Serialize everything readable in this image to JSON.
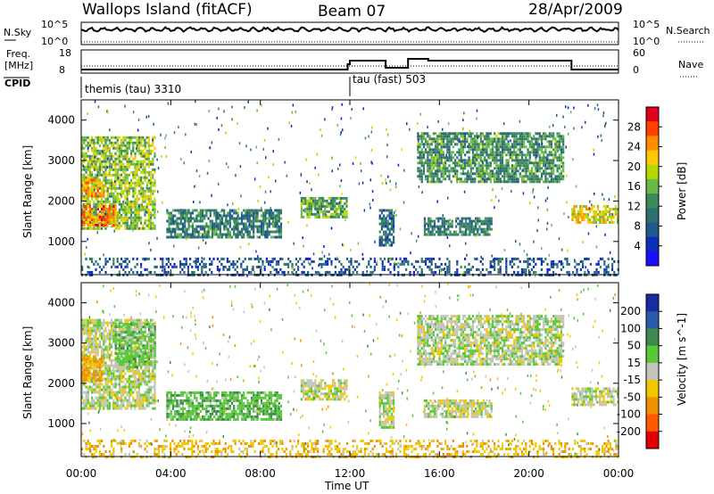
{
  "header": {
    "station": "Wallops Island (fitACF)",
    "beam": "Beam 07",
    "date": "28/Apr/2009"
  },
  "noise_panel": {
    "left_label": "N.Sky",
    "left_ticks": [
      "10^5",
      "10^0"
    ],
    "right_label": "N.Search",
    "right_ticks": [
      "10^5",
      "10^0"
    ]
  },
  "freq_panel": {
    "left_label_line1": "Freq.",
    "left_label_line2": "[MHz]",
    "left_ticks": [
      "18",
      "8"
    ],
    "right_label": "Nave",
    "right_ticks": [
      "60",
      "0"
    ],
    "freq_steps": [
      {
        "t0": 0.0,
        "t1": 11.9,
        "mhz": 10
      },
      {
        "t0": 11.9,
        "t1": 12.0,
        "mhz": 13
      },
      {
        "t0": 12.0,
        "t1": 13.6,
        "mhz": 15
      },
      {
        "t0": 13.6,
        "t1": 14.6,
        "mhz": 11
      },
      {
        "t0": 14.6,
        "t1": 15.5,
        "mhz": 16
      },
      {
        "t0": 15.5,
        "t1": 21.9,
        "mhz": 15
      },
      {
        "t0": 21.9,
        "t1": 24.0,
        "mhz": 10
      }
    ]
  },
  "cpid": {
    "label": "CPID",
    "segments": [
      {
        "start_hour": 0,
        "text": "themis (tau) 3310"
      },
      {
        "start_hour": 12,
        "text": "tau (fast) 503"
      }
    ]
  },
  "axes": {
    "ylabel": "Slant Range [km]",
    "yticks": [
      "1000",
      "2000",
      "3000",
      "4000"
    ],
    "ylim": [
      180,
      4500
    ],
    "xlabel": "Time UT",
    "xticks": [
      "00:00",
      "04:00",
      "08:00",
      "12:00",
      "16:00",
      "20:00",
      "00:00"
    ],
    "xlim_hours": [
      0,
      24
    ]
  },
  "colorbars": {
    "power": {
      "label": "Power [dB]",
      "ticks": [
        "28",
        "24",
        "20",
        "16",
        "12",
        "8",
        "4"
      ],
      "colors": [
        "#e0001c",
        "#ff4000",
        "#ff8c00",
        "#ffc800",
        "#b5d800",
        "#6ab84a",
        "#3a8a5a",
        "#2f6f70",
        "#1f5a8c",
        "#0c30b8",
        "#1a10ff"
      ]
    },
    "velocity": {
      "label": "Velocity [m s^-1]",
      "ticks": [
        "200",
        "100",
        "50",
        "15",
        "-15",
        "-50",
        "-100",
        "-200"
      ],
      "colors": [
        "#1a2aa0",
        "#2a5aa8",
        "#3e8a4e",
        "#57c83a",
        "#c4c4bc",
        "#f0c800",
        "#f09000",
        "#ff5a00",
        "#e00000"
      ]
    }
  },
  "chart_data": [
    {
      "type": "heatmap",
      "name": "Power [dB]",
      "x_unit": "hour UT",
      "y_unit": "km",
      "xlim": [
        0,
        24
      ],
      "ylim": [
        180,
        4500
      ],
      "regions": [
        {
          "t0": 0.0,
          "t1": 3.3,
          "r0": 1350,
          "r1": 3600,
          "value": 16
        },
        {
          "t0": 0.0,
          "t1": 1.5,
          "r0": 1400,
          "r1": 1900,
          "value": 24
        },
        {
          "t0": 0.0,
          "t1": 1.0,
          "r0": 2150,
          "r1": 2550,
          "value": 22
        },
        {
          "t0": 3.8,
          "t1": 8.9,
          "r0": 1100,
          "r1": 1800,
          "value": 10
        },
        {
          "t0": 9.8,
          "t1": 11.9,
          "r0": 1600,
          "r1": 2100,
          "value": 14
        },
        {
          "t0": 13.3,
          "t1": 14.0,
          "r0": 900,
          "r1": 1800,
          "value": 8
        },
        {
          "t0": 15.3,
          "t1": 18.3,
          "r0": 1150,
          "r1": 1600,
          "value": 10
        },
        {
          "t0": 15.0,
          "t1": 21.5,
          "r0": 2500,
          "r1": 3700,
          "value": 12
        },
        {
          "t0": 21.9,
          "t1": 24.0,
          "r0": 1500,
          "r1": 1900,
          "value": 20
        },
        {
          "t0": 0.0,
          "t1": 24.0,
          "r0": 180,
          "r1": 600,
          "value": 6
        }
      ]
    },
    {
      "type": "heatmap",
      "name": "Velocity [m s^-1]",
      "x_unit": "hour UT",
      "y_unit": "km",
      "xlim": [
        0,
        24
      ],
      "ylim": [
        180,
        4500
      ],
      "regions": [
        {
          "t0": 0.0,
          "t1": 3.3,
          "r0": 1350,
          "r1": 3600,
          "value": 0
        },
        {
          "t0": 0.0,
          "t1": 0.9,
          "r0": 2100,
          "r1": 2700,
          "value": -60
        },
        {
          "t0": 1.5,
          "t1": 3.3,
          "r0": 2400,
          "r1": 3500,
          "value": 30
        },
        {
          "t0": 3.8,
          "t1": 8.9,
          "r0": 1100,
          "r1": 1800,
          "value": 40
        },
        {
          "t0": 9.8,
          "t1": 11.9,
          "r0": 1600,
          "r1": 2100,
          "value": 0
        },
        {
          "t0": 13.3,
          "t1": 14.0,
          "r0": 900,
          "r1": 1800,
          "value": 0
        },
        {
          "t0": 15.3,
          "t1": 18.3,
          "r0": 1150,
          "r1": 1600,
          "value": 0
        },
        {
          "t0": 15.0,
          "t1": 21.5,
          "r0": 2500,
          "r1": 3700,
          "value": 5
        },
        {
          "t0": 21.9,
          "t1": 24.0,
          "r0": 1500,
          "r1": 1900,
          "value": 0
        },
        {
          "t0": 0.0,
          "t1": 24.0,
          "r0": 180,
          "r1": 600,
          "value": -40
        }
      ]
    }
  ]
}
